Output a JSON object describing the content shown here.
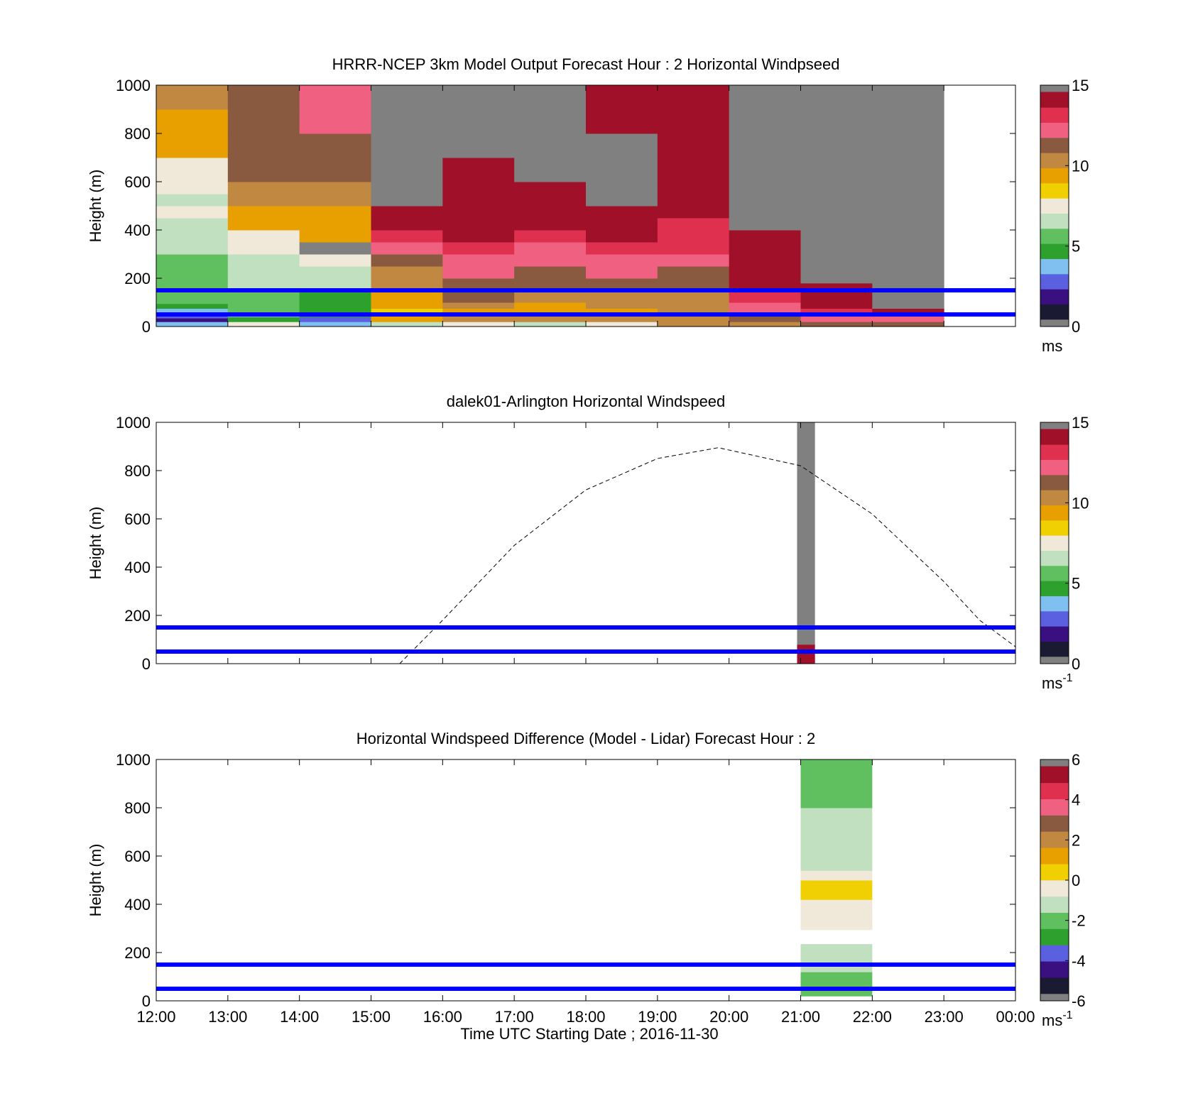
{
  "figure": {
    "xlabel": "Time UTC  Starting Date ; 2016-11-30",
    "xticks": [
      "12:00",
      "13:00",
      "14:00",
      "15:00",
      "16:00",
      "17:00",
      "18:00",
      "19:00",
      "20:00",
      "21:00",
      "22:00",
      "23:00",
      "00:00"
    ]
  },
  "palettes": {
    "windspeed": [
      "#1a1a33",
      "#3a1080",
      "#5a60e0",
      "#80c0f0",
      "#2ea02e",
      "#60c060",
      "#c0e0c0",
      "#f0e8d8",
      "#f0d000",
      "#e8a000",
      "#c08840",
      "#8a5a40",
      "#f06080",
      "#e03050",
      "#a01028"
    ],
    "difference": [
      "#1a1a33",
      "#3a1080",
      "#5a60e0",
      "#2ea02e",
      "#60c060",
      "#c0e0c0",
      "#f0e8d8",
      "#f0d000",
      "#e8a000",
      "#c08840",
      "#8a5a40",
      "#f06080",
      "#e03050",
      "#a01028"
    ],
    "na_color": "#808080",
    "line_color": "#0000ff"
  },
  "chart_data": [
    {
      "type": "heatmap",
      "title": "HRRR-NCEP 3km Model Output   Forecast Hour : 2 Horizontal Windpseed",
      "ylabel": "Height (m)",
      "ylim": [
        0,
        1000
      ],
      "yticks": [
        "0",
        "200",
        "400",
        "600",
        "800",
        "1000"
      ],
      "xlim": [
        0,
        12
      ],
      "colorbar": {
        "ticks": [
          "0",
          "5",
          "10",
          "15"
        ],
        "range": [
          0,
          15
        ],
        "unit": "ms",
        "sup": ""
      },
      "reference_lines_m": [
        50,
        150
      ],
      "columns": [
        {
          "x": 0,
          "segments": [
            [
              0,
              20,
              3
            ],
            [
              20,
              35,
              1.5
            ],
            [
              35,
              55,
              2.5
            ],
            [
              55,
              75,
              3.5
            ],
            [
              75,
              95,
              4.5
            ],
            [
              95,
              115,
              5
            ],
            [
              115,
              150,
              5
            ],
            [
              150,
              200,
              5
            ],
            [
              200,
              250,
              5.5
            ],
            [
              250,
              300,
              5.5
            ],
            [
              300,
              350,
              6.5
            ],
            [
              350,
              400,
              6.5
            ],
            [
              400,
              450,
              6.5
            ],
            [
              450,
              500,
              7
            ],
            [
              500,
              550,
              6.8
            ],
            [
              550,
              600,
              7
            ],
            [
              600,
              700,
              7.5
            ],
            [
              700,
              800,
              9
            ],
            [
              800,
              900,
              9.5
            ],
            [
              900,
              1000,
              10.5
            ]
          ]
        },
        {
          "x": 1,
          "segments": [
            [
              0,
              20,
              7.5
            ],
            [
              20,
              40,
              4
            ],
            [
              40,
              60,
              3.5
            ],
            [
              60,
              100,
              5
            ],
            [
              100,
              150,
              5
            ],
            [
              150,
              200,
              6
            ],
            [
              200,
              250,
              6.5
            ],
            [
              250,
              300,
              6.5
            ],
            [
              300,
              350,
              7
            ],
            [
              350,
              400,
              7.5
            ],
            [
              400,
              450,
              9
            ],
            [
              450,
              500,
              9.5
            ],
            [
              500,
              600,
              10
            ],
            [
              600,
              700,
              11
            ],
            [
              700,
              800,
              11
            ],
            [
              800,
              900,
              11
            ],
            [
              900,
              1000,
              11
            ]
          ]
        },
        {
          "x": 2,
          "segments": [
            [
              0,
              20,
              3
            ],
            [
              20,
              40,
              2.5
            ],
            [
              40,
              60,
              4
            ],
            [
              60,
              150,
              4.5
            ],
            [
              150,
              200,
              6
            ],
            [
              200,
              250,
              6.5
            ],
            [
              250,
              300,
              7
            ],
            [
              300,
              350,
              null
            ],
            [
              350,
              400,
              9
            ],
            [
              400,
              450,
              9.5
            ],
            [
              450,
              500,
              9.5
            ],
            [
              500,
              600,
              10
            ],
            [
              600,
              700,
              11
            ],
            [
              700,
              800,
              11
            ],
            [
              800,
              900,
              12
            ],
            [
              900,
              1000,
              12.5
            ]
          ]
        },
        {
          "x": 3,
          "segments": [
            [
              0,
              20,
              6.5
            ],
            [
              20,
              50,
              9
            ],
            [
              50,
              75,
              8
            ],
            [
              75,
              100,
              9.3
            ],
            [
              100,
              150,
              9.8
            ],
            [
              150,
              200,
              10
            ],
            [
              200,
              250,
              10.5
            ],
            [
              250,
              300,
              11
            ],
            [
              300,
              350,
              12
            ],
            [
              350,
              400,
              13
            ],
            [
              400,
              450,
              14
            ],
            [
              450,
              500,
              15
            ],
            [
              500,
              1000,
              null
            ]
          ]
        },
        {
          "x": 4,
          "segments": [
            [
              0,
              20,
              7
            ],
            [
              20,
              50,
              10
            ],
            [
              50,
              75,
              9.5
            ],
            [
              75,
              100,
              10
            ],
            [
              100,
              150,
              11
            ],
            [
              150,
              200,
              11.5
            ],
            [
              200,
              250,
              12
            ],
            [
              250,
              300,
              12.5
            ],
            [
              300,
              350,
              13
            ],
            [
              350,
              400,
              14
            ],
            [
              400,
              450,
              14
            ],
            [
              450,
              500,
              14.5
            ],
            [
              500,
              550,
              15
            ],
            [
              550,
              600,
              15
            ],
            [
              600,
              700,
              15.5
            ],
            [
              700,
              1000,
              null
            ]
          ]
        },
        {
          "x": 5,
          "segments": [
            [
              0,
              20,
              6.5
            ],
            [
              20,
              50,
              10
            ],
            [
              50,
              75,
              9.3
            ],
            [
              75,
              100,
              9.8
            ],
            [
              100,
              150,
              10.5
            ],
            [
              150,
              200,
              11
            ],
            [
              200,
              250,
              11.5
            ],
            [
              250,
              300,
              12
            ],
            [
              300,
              350,
              12.5
            ],
            [
              350,
              400,
              13
            ],
            [
              400,
              450,
              14
            ],
            [
              450,
              500,
              14.5
            ],
            [
              500,
              550,
              15
            ],
            [
              550,
              600,
              15
            ],
            [
              600,
              1000,
              null
            ]
          ]
        },
        {
          "x": 6,
          "segments": [
            [
              0,
              20,
              7.5
            ],
            [
              20,
              50,
              10
            ],
            [
              50,
              75,
              9.5
            ],
            [
              75,
              100,
              10
            ],
            [
              100,
              150,
              10.5
            ],
            [
              150,
              200,
              11
            ],
            [
              200,
              250,
              12
            ],
            [
              250,
              300,
              12.5
            ],
            [
              300,
              350,
              13.5
            ],
            [
              350,
              400,
              14
            ],
            [
              400,
              450,
              14.5
            ],
            [
              450,
              500,
              15
            ],
            [
              500,
              800,
              null
            ],
            [
              800,
              1000,
              15.5
            ]
          ]
        },
        {
          "x": 7,
          "segments": [
            [
              0,
              20,
              10
            ],
            [
              20,
              50,
              10.5
            ],
            [
              50,
              100,
              10
            ],
            [
              100,
              150,
              10.5
            ],
            [
              150,
              200,
              11
            ],
            [
              200,
              250,
              11.5
            ],
            [
              250,
              300,
              12
            ],
            [
              300,
              350,
              13
            ],
            [
              350,
              400,
              13.5
            ],
            [
              400,
              450,
              13.5
            ],
            [
              450,
              550,
              14
            ],
            [
              550,
              600,
              14
            ],
            [
              600,
              700,
              14.5
            ],
            [
              700,
              800,
              14.5
            ],
            [
              800,
              900,
              14.5
            ],
            [
              900,
              1000,
              14.5
            ]
          ]
        },
        {
          "x": 8,
          "segments": [
            [
              0,
              20,
              10
            ],
            [
              20,
              50,
              11
            ],
            [
              50,
              75,
              12
            ],
            [
              75,
              100,
              12.5
            ],
            [
              100,
              150,
              13.5
            ],
            [
              150,
              200,
              14
            ],
            [
              200,
              250,
              14.5
            ],
            [
              250,
              300,
              14.5
            ],
            [
              300,
              350,
              15
            ],
            [
              350,
              400,
              15.5
            ],
            [
              400,
              1000,
              null
            ]
          ]
        },
        {
          "x": 9,
          "segments": [
            [
              0,
              20,
              11
            ],
            [
              20,
              50,
              12.5
            ],
            [
              50,
              75,
              13.5
            ],
            [
              75,
              100,
              14
            ],
            [
              100,
              150,
              14.5
            ],
            [
              150,
              180,
              15
            ],
            [
              180,
              1000,
              null
            ]
          ]
        },
        {
          "x": 10,
          "segments": [
            [
              0,
              20,
              11.5
            ],
            [
              20,
              50,
              12.5
            ],
            [
              50,
              75,
              15
            ],
            [
              75,
              1000,
              null
            ]
          ]
        }
      ]
    },
    {
      "type": "heatmap",
      "title": "dalek01-Arlington  Horizontal Windspeed",
      "ylabel": "Height (m)",
      "ylim": [
        0,
        1000
      ],
      "yticks": [
        "0",
        "200",
        "400",
        "600",
        "800",
        "1000"
      ],
      "xlim": [
        0,
        12
      ],
      "colorbar": {
        "ticks": [
          "0",
          "5",
          "10",
          "15"
        ],
        "range": [
          0,
          15
        ],
        "unit": "ms",
        "sup": "-1"
      },
      "reference_lines_m": [
        50,
        150
      ],
      "bars": [
        {
          "x0": 8.95,
          "x1": 9.2,
          "segments": [
            [
              0,
              10,
              15.5
            ],
            [
              10,
              45,
              14
            ],
            [
              45,
              80,
              15.5
            ],
            [
              80,
              1000,
              null
            ]
          ]
        }
      ],
      "curve": {
        "x": [
          3.4,
          4,
          5,
          6,
          7,
          7.85,
          9,
          10,
          11,
          11.5,
          12
        ],
        "y": [
          0,
          180,
          490,
          720,
          850,
          895,
          820,
          620,
          340,
          180,
          70
        ]
      }
    },
    {
      "type": "heatmap",
      "title": "Horizontal Windspeed Difference (Model - Lidar) Forecast Hour : 2",
      "ylabel": "Height (m)",
      "ylim": [
        0,
        1000
      ],
      "yticks": [
        "0",
        "200",
        "400",
        "600",
        "800",
        "1000"
      ],
      "xlim": [
        0,
        12
      ],
      "colorbar": {
        "ticks": [
          "-6",
          "-4",
          "-2",
          "0",
          "2",
          "4",
          "6"
        ],
        "range": [
          -6,
          6
        ],
        "unit": "ms",
        "sup": "-1"
      },
      "reference_lines_m": [
        50,
        150
      ],
      "bars": [
        {
          "x0": 9,
          "x1": 10,
          "segments": [
            [
              20,
              60,
              -2.5
            ],
            [
              60,
              120,
              -2
            ],
            [
              120,
              170,
              -1.5
            ],
            [
              170,
              235,
              -1
            ],
            [
              295,
              330,
              -0.5
            ],
            [
              330,
              380,
              -0.7
            ],
            [
              380,
              420,
              -0.3
            ],
            [
              420,
              470,
              0.5
            ],
            [
              470,
              500,
              0.2
            ],
            [
              500,
              540,
              -0.5
            ],
            [
              540,
              600,
              -1
            ],
            [
              600,
              650,
              -1.2
            ],
            [
              650,
              700,
              -1
            ],
            [
              700,
              750,
              -1.5
            ],
            [
              750,
              800,
              -1.2
            ],
            [
              800,
              850,
              -1.8
            ],
            [
              850,
              900,
              -2
            ],
            [
              900,
              950,
              -2.2
            ],
            [
              950,
              1000,
              -2
            ]
          ]
        }
      ]
    }
  ]
}
